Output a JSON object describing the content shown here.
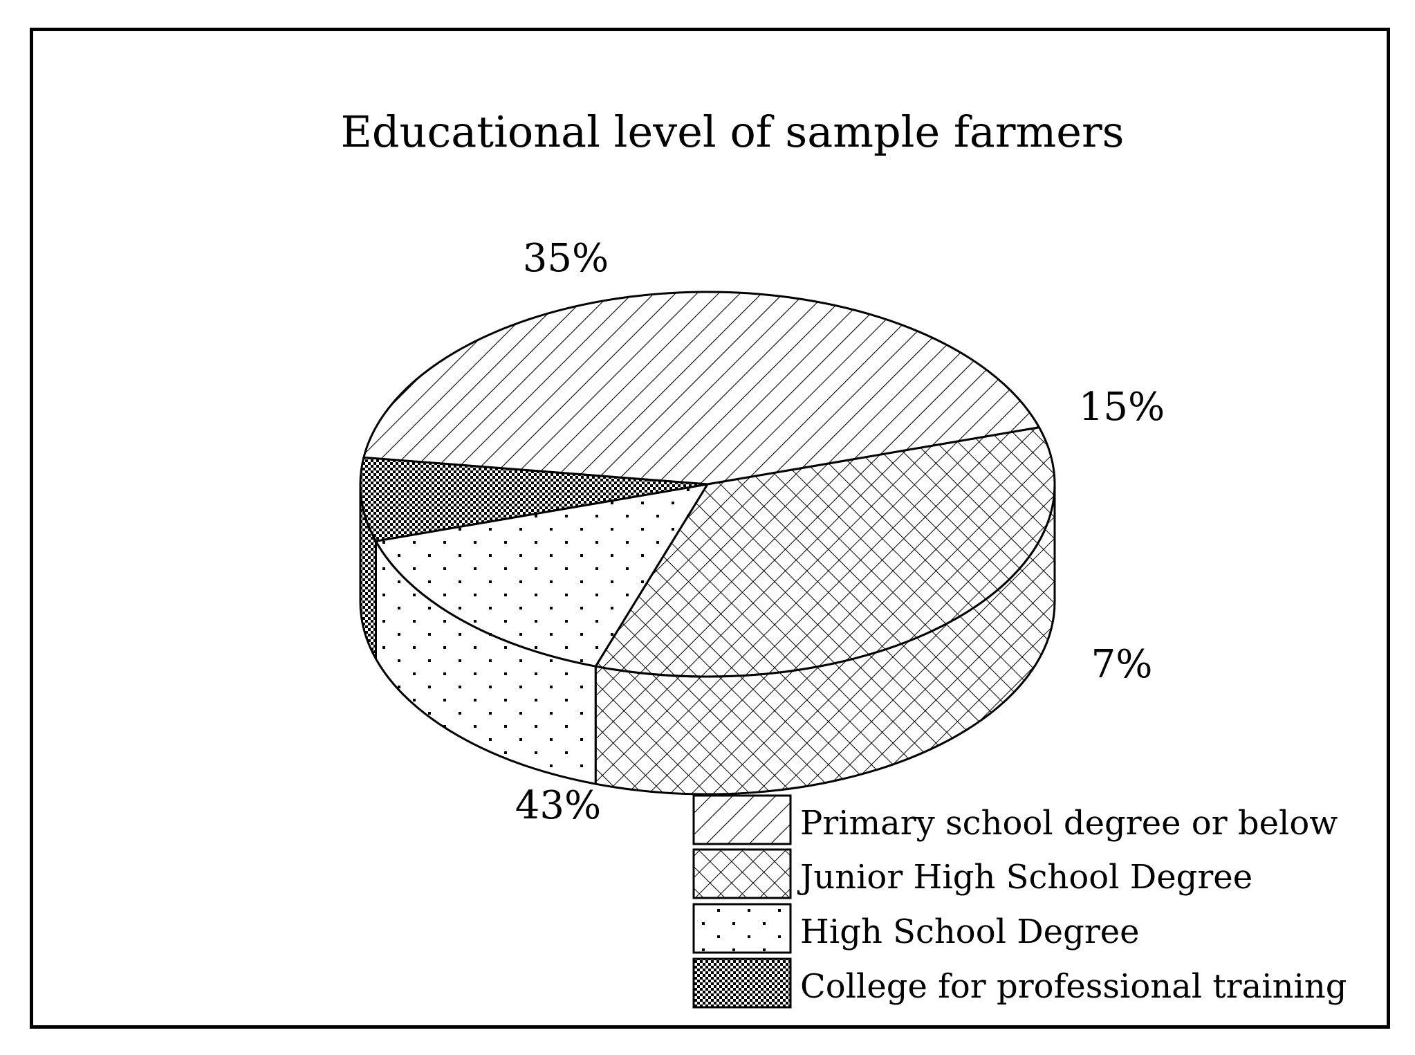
{
  "chart_data": {
    "type": "pie",
    "style": "3d",
    "title": "Educational level of sample farmers",
    "slices": [
      {
        "name": "Primary school degree or below",
        "value": 43,
        "label": "43%",
        "pattern": "diagonal-hatch"
      },
      {
        "name": "Junior High School Degree",
        "value": 35,
        "label": "35%",
        "pattern": "cross-hatch"
      },
      {
        "name": "High School Degree",
        "value": 15,
        "label": "15%",
        "pattern": "sparse-dots"
      },
      {
        "name": "College for professional training",
        "value": 7,
        "label": "7%",
        "pattern": "checker"
      }
    ],
    "legend": {
      "placement": "bottom-right"
    },
    "colors": {
      "ink": "#000000",
      "background": "#ffffff"
    }
  }
}
